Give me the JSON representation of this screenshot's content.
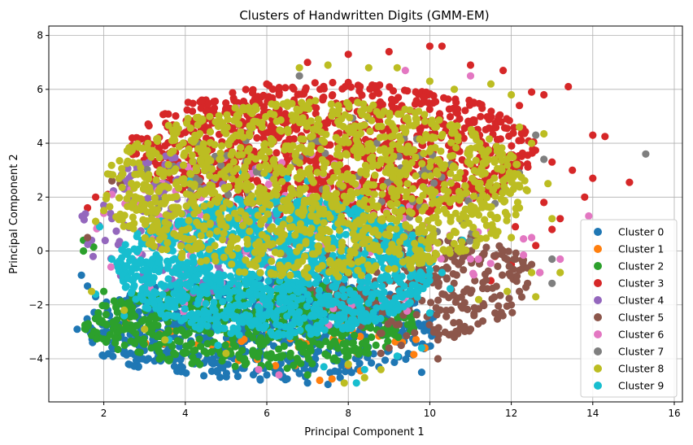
{
  "chart_data": {
    "type": "scatter",
    "title": "Clusters of Handwritten Digits (GMM-EM)",
    "xlabel": "Principal Component 1",
    "ylabel": "Principal Component 2",
    "xlim": [
      0.65,
      16.2
    ],
    "ylim": [
      -5.6,
      8.35
    ],
    "xticks": [
      2,
      4,
      6,
      8,
      10,
      12,
      14,
      16
    ],
    "yticks": [
      -4,
      -2,
      0,
      2,
      4,
      6,
      8
    ],
    "grid": true,
    "legend_position": "lower-right",
    "draw_order": [
      0,
      1,
      2,
      3,
      4,
      5,
      6,
      7,
      9,
      8
    ],
    "series": [
      {
        "name": "Cluster 0",
        "color": "#1f77b4",
        "blob": {
          "cx": 5.8,
          "cy": -2.9,
          "rx": 4.5,
          "ry": 1.9,
          "n": 650
        },
        "points": [
          [
            1.45,
            -0.9
          ],
          [
            1.6,
            -1.3
          ],
          [
            1.8,
            -1.7
          ],
          [
            2.1,
            -2.2
          ],
          [
            2.5,
            -2.7
          ],
          [
            3.0,
            -3.2
          ],
          [
            3.6,
            -3.6
          ],
          [
            4.2,
            -3.9
          ],
          [
            4.8,
            -4.15
          ],
          [
            5.4,
            -4.35
          ],
          [
            6.0,
            -4.6
          ],
          [
            6.5,
            -4.75
          ],
          [
            7.0,
            -4.9
          ],
          [
            7.5,
            -4.95
          ],
          [
            7.8,
            -4.7
          ],
          [
            9.8,
            -4.5
          ]
        ]
      },
      {
        "name": "Cluster 1",
        "color": "#ff7f0e",
        "blob": {
          "cx": 6.5,
          "cy": -3.4,
          "rx": 3.5,
          "ry": 1.0,
          "n": 40
        },
        "points": [
          [
            2.5,
            -2.85
          ],
          [
            2.55,
            -2.6
          ],
          [
            7.3,
            -4.8
          ],
          [
            7.6,
            -4.75
          ],
          [
            8.3,
            -4.45
          ]
        ]
      },
      {
        "name": "Cluster 2",
        "color": "#2ca02c",
        "blob": {
          "cx": 5.6,
          "cy": -2.7,
          "rx": 4.1,
          "ry": 1.6,
          "n": 550
        },
        "points": [
          [
            1.5,
            0.4
          ],
          [
            1.75,
            0.15
          ],
          [
            1.5,
            0.0
          ],
          [
            2.0,
            -1.5
          ],
          [
            2.3,
            -2.1
          ],
          [
            3.2,
            -3.1
          ],
          [
            4.2,
            -3.7
          ],
          [
            5.5,
            -4.15
          ],
          [
            6.5,
            -4.35
          ],
          [
            7.0,
            -4.6
          ]
        ]
      },
      {
        "name": "Cluster 3",
        "color": "#d62728",
        "blob": {
          "cx": 7.6,
          "cy": 3.7,
          "rx": 5.0,
          "ry": 2.6,
          "n": 1100
        },
        "points": [
          [
            1.6,
            1.6
          ],
          [
            1.8,
            2.0
          ],
          [
            2.1,
            2.1
          ],
          [
            2.5,
            2.6
          ],
          [
            3.0,
            3.2
          ],
          [
            3.5,
            3.9
          ],
          [
            4.0,
            4.4
          ],
          [
            4.5,
            4.9
          ],
          [
            5.0,
            5.3
          ],
          [
            6.0,
            6.2
          ],
          [
            7.0,
            7.0
          ],
          [
            8.0,
            7.3
          ],
          [
            9.0,
            7.4
          ],
          [
            10.0,
            7.6
          ],
          [
            10.3,
            7.6
          ],
          [
            11.0,
            6.9
          ],
          [
            11.8,
            6.7
          ],
          [
            12.5,
            5.9
          ],
          [
            13.4,
            6.1
          ],
          [
            12.2,
            5.4
          ],
          [
            12.8,
            5.8
          ],
          [
            13.0,
            3.3
          ],
          [
            13.5,
            3.0
          ],
          [
            14.0,
            4.3
          ],
          [
            14.3,
            4.25
          ],
          [
            13.8,
            2.0
          ],
          [
            14.0,
            2.7
          ],
          [
            14.9,
            2.55
          ],
          [
            13.0,
            0.8
          ],
          [
            13.2,
            1.2
          ],
          [
            12.6,
            0.2
          ],
          [
            12.0,
            -0.5
          ],
          [
            11.5,
            -1.1
          ],
          [
            12.1,
            0.9
          ],
          [
            12.8,
            1.8
          ],
          [
            11.6,
            -0.2
          ]
        ]
      },
      {
        "name": "Cluster 4",
        "color": "#9467bd",
        "blob": {
          "cx": 4.2,
          "cy": 1.0,
          "rx": 2.8,
          "ry": 2.6,
          "n": 160
        },
        "points": [
          [
            1.7,
            0.4
          ],
          [
            2.0,
            1.7
          ],
          [
            2.2,
            1.2
          ],
          [
            2.5,
            2.3
          ],
          [
            3.0,
            2.8
          ]
        ]
      },
      {
        "name": "Cluster 5",
        "color": "#8c564b",
        "blob": {
          "cx": 9.8,
          "cy": -1.2,
          "rx": 2.8,
          "ry": 2.0,
          "n": 320
        },
        "points": [
          [
            1.6,
            0.5
          ],
          [
            2.2,
            2.6
          ],
          [
            2.4,
            2.5
          ],
          [
            8.8,
            -3.8
          ],
          [
            9.0,
            -3.6
          ],
          [
            9.3,
            -3.5
          ],
          [
            10.2,
            -3.3
          ],
          [
            10.6,
            -3.2
          ],
          [
            11.0,
            -2.9
          ],
          [
            11.3,
            -2.6
          ],
          [
            11.6,
            -2.3
          ],
          [
            12.0,
            -2.0
          ],
          [
            12.2,
            -1.5
          ],
          [
            12.4,
            -1.2
          ],
          [
            12.7,
            -0.8
          ],
          [
            12.1,
            -0.3
          ],
          [
            12.5,
            -0.5
          ],
          [
            10.2,
            -4.0
          ]
        ]
      },
      {
        "name": "Cluster 6",
        "color": "#e377c2",
        "blob": {
          "cx": 6.8,
          "cy": 0.5,
          "rx": 5.0,
          "ry": 3.4,
          "n": 130
        },
        "points": [
          [
            2.2,
            2.1
          ],
          [
            2.0,
            1.4
          ],
          [
            12.3,
            0.45
          ],
          [
            12.5,
            0.5
          ],
          [
            12.3,
            -0.15
          ],
          [
            12.7,
            -0.8
          ],
          [
            13.2,
            -0.3
          ],
          [
            13.9,
            1.3
          ],
          [
            5.3,
            5.3
          ],
          [
            5.8,
            -4.4
          ],
          [
            6.3,
            -4.6
          ],
          [
            9.4,
            6.7
          ],
          [
            11.0,
            6.5
          ]
        ]
      },
      {
        "name": "Cluster 7",
        "color": "#7f7f7f",
        "blob": {
          "cx": 7.4,
          "cy": 2.2,
          "rx": 4.6,
          "ry": 3.0,
          "n": 110
        },
        "points": [
          [
            15.3,
            3.6
          ],
          [
            12.6,
            4.3
          ],
          [
            12.8,
            3.4
          ],
          [
            12.2,
            2.9
          ],
          [
            13.0,
            -0.3
          ],
          [
            13.0,
            -1.2
          ],
          [
            11.8,
            2.2
          ],
          [
            6.8,
            6.5
          ],
          [
            11.2,
            2.0
          ]
        ]
      },
      {
        "name": "Cluster 8",
        "color": "#bcbd22",
        "blob": {
          "cx": 7.2,
          "cy": 2.3,
          "rx": 5.2,
          "ry": 3.3,
          "n": 1350
        },
        "points": [
          [
            1.8,
            1.1
          ],
          [
            2.0,
            1.5
          ],
          [
            1.7,
            -1.5
          ],
          [
            2.5,
            -2.2
          ],
          [
            3.0,
            -2.9
          ],
          [
            3.5,
            -3.3
          ],
          [
            5.0,
            -3.8
          ],
          [
            6.8,
            6.8
          ],
          [
            7.5,
            6.9
          ],
          [
            8.5,
            6.8
          ],
          [
            9.2,
            6.8
          ],
          [
            10.0,
            6.3
          ],
          [
            10.6,
            6.0
          ],
          [
            11.5,
            6.2
          ],
          [
            12.0,
            5.8
          ],
          [
            12.2,
            4.6
          ],
          [
            12.5,
            4.0
          ],
          [
            12.8,
            4.35
          ],
          [
            12.9,
            2.5
          ],
          [
            13.0,
            1.2
          ],
          [
            12.5,
            -0.8
          ],
          [
            12.6,
            -1.7
          ],
          [
            11.9,
            -1.5
          ],
          [
            13.2,
            -0.8
          ],
          [
            12.0,
            0.5
          ],
          [
            8.4,
            -4.7
          ],
          [
            8.8,
            -4.4
          ],
          [
            7.9,
            -4.9
          ],
          [
            8.0,
            -4.2
          ],
          [
            11.2,
            -1.8
          ],
          [
            12.2,
            1.6
          ],
          [
            11.8,
            2.6
          ]
        ]
      },
      {
        "name": "Cluster 9",
        "color": "#17becf",
        "blob": {
          "cx": 6.2,
          "cy": -0.6,
          "rx": 3.9,
          "ry": 2.6,
          "n": 1250
        },
        "points": [
          [
            1.8,
            -1.6
          ],
          [
            1.9,
            0.9
          ],
          [
            4.1,
            2.6
          ],
          [
            5.4,
            2.95
          ],
          [
            6.0,
            2.8
          ],
          [
            6.5,
            2.7
          ],
          [
            7.0,
            2.6
          ],
          [
            8.3,
            2.0
          ],
          [
            9.3,
            1.6
          ],
          [
            9.8,
            0.6
          ],
          [
            10.3,
            -0.8
          ],
          [
            10.5,
            -1.4
          ],
          [
            10.0,
            -2.3
          ],
          [
            9.8,
            -3.6
          ],
          [
            9.2,
            -3.9
          ],
          [
            8.4,
            -4.4
          ],
          [
            8.2,
            -4.9
          ],
          [
            7.4,
            -4.3
          ],
          [
            4.8,
            -3.5
          ],
          [
            3.6,
            -3.3
          ],
          [
            2.5,
            -2.4
          ],
          [
            2.2,
            -0.3
          ],
          [
            10.8,
            0.4
          ],
          [
            10.2,
            1.9
          ]
        ]
      }
    ]
  }
}
